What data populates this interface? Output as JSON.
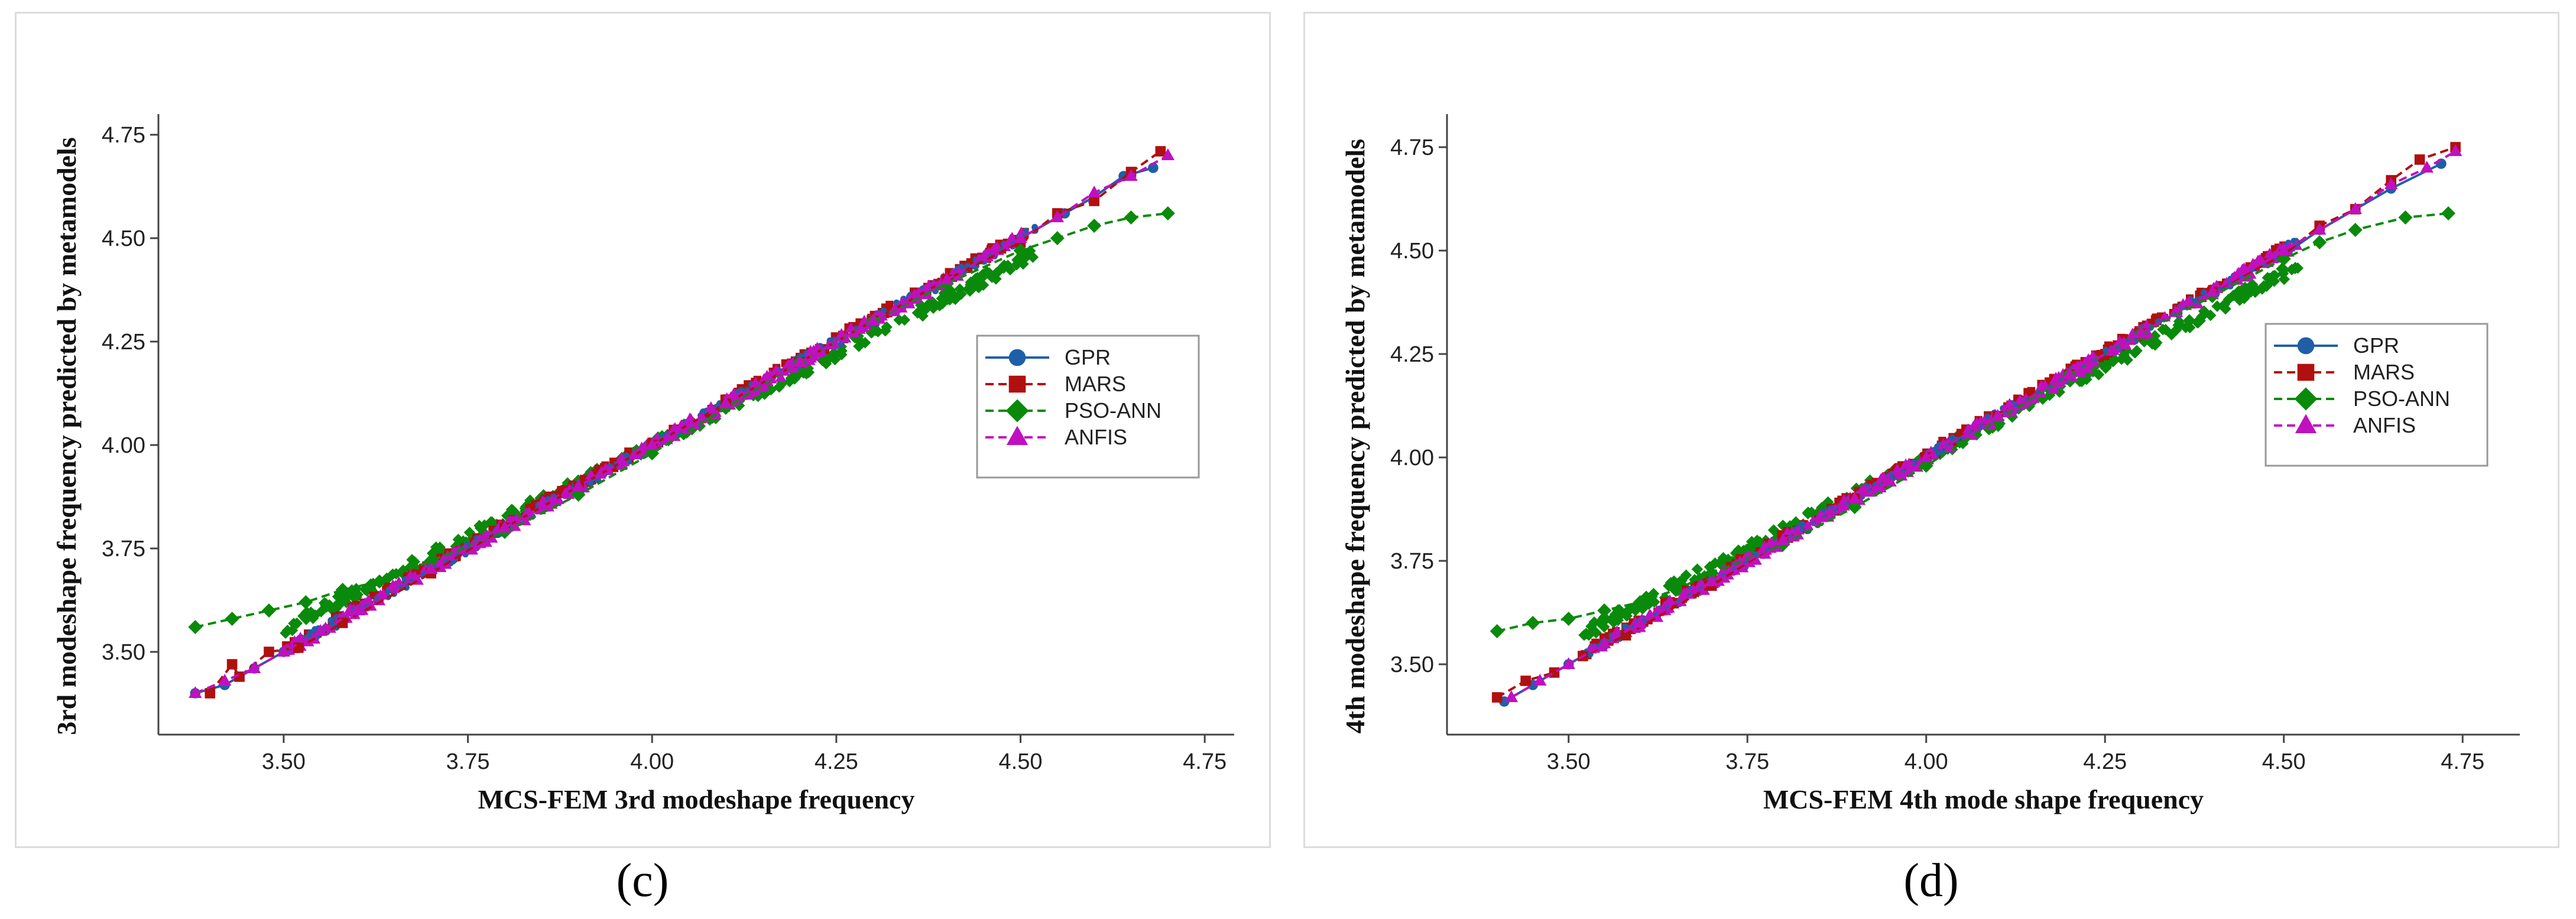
{
  "chart_data": [
    {
      "type": "line",
      "panel": "(c)",
      "xlabel": "MCS-FEM 3rd modeshape frequency",
      "ylabel": "3rd modeshape frequency predicted by metamodels",
      "xlim": [
        3.33,
        4.79
      ],
      "ylim": [
        3.3,
        4.8
      ],
      "xticks": [
        "3.50",
        "3.75",
        "4.00",
        "4.25",
        "4.50",
        "4.75"
      ],
      "yticks": [
        "3.50",
        "3.75",
        "4.00",
        "4.25",
        "4.50",
        "4.75"
      ],
      "legend_position": "right",
      "series": [
        {
          "name": "GPR",
          "color": "#1f5fa8",
          "marker": "circle",
          "dash": "solid",
          "x": [
            3.38,
            3.42,
            3.46,
            3.5,
            3.55,
            3.6,
            3.7,
            3.8,
            3.9,
            4.0,
            4.1,
            4.2,
            4.3,
            4.4,
            4.5,
            4.56,
            4.6,
            4.64,
            4.68
          ],
          "y": [
            3.4,
            3.42,
            3.46,
            3.5,
            3.55,
            3.6,
            3.7,
            3.8,
            3.9,
            4.0,
            4.1,
            4.2,
            4.3,
            4.4,
            4.5,
            4.56,
            4.6,
            4.65,
            4.67
          ]
        },
        {
          "name": "MARS",
          "color": "#b01010",
          "marker": "square",
          "dash": "dashed",
          "x": [
            3.4,
            3.43,
            3.44,
            3.48,
            3.52,
            3.58,
            3.7,
            3.8,
            3.9,
            4.0,
            4.1,
            4.2,
            4.3,
            4.4,
            4.5,
            4.55,
            4.6,
            4.65,
            4.69
          ],
          "y": [
            3.4,
            3.47,
            3.44,
            3.5,
            3.51,
            3.57,
            3.69,
            3.8,
            3.9,
            4.0,
            4.1,
            4.2,
            4.3,
            4.4,
            4.49,
            4.56,
            4.59,
            4.66,
            4.71
          ]
        },
        {
          "name": "PSO-ANN",
          "color": "#0a8a0a",
          "marker": "diamond",
          "dash": "dashed",
          "x": [
            3.38,
            3.43,
            3.48,
            3.53,
            3.58,
            3.63,
            3.7,
            3.8,
            3.9,
            4.0,
            4.1,
            4.2,
            4.3,
            4.4,
            4.5,
            4.55,
            4.6,
            4.65,
            4.7
          ],
          "y": [
            3.56,
            3.58,
            3.6,
            3.62,
            3.65,
            3.67,
            3.72,
            3.79,
            3.88,
            3.98,
            4.09,
            4.2,
            4.3,
            4.39,
            4.47,
            4.5,
            4.53,
            4.55,
            4.56
          ]
        },
        {
          "name": "ANFIS",
          "color": "#c010c0",
          "marker": "triangle",
          "dash": "dashed",
          "x": [
            3.38,
            3.42,
            3.46,
            3.5,
            3.55,
            3.6,
            3.7,
            3.8,
            3.9,
            4.0,
            4.1,
            4.2,
            4.3,
            4.4,
            4.5,
            4.55,
            4.6,
            4.65,
            4.7
          ],
          "y": [
            3.4,
            3.43,
            3.46,
            3.5,
            3.55,
            3.6,
            3.7,
            3.8,
            3.9,
            4.0,
            4.1,
            4.2,
            4.3,
            4.4,
            4.5,
            4.55,
            4.61,
            4.65,
            4.7
          ]
        }
      ]
    },
    {
      "type": "line",
      "panel": "(d)",
      "xlabel": "MCS-FEM 4th mode shape frequency",
      "ylabel": "4th modeshape frequency predicted by metamodels",
      "xlim": [
        3.33,
        4.83
      ],
      "ylim": [
        3.33,
        4.83
      ],
      "xticks": [
        "3.50",
        "3.75",
        "4.00",
        "4.25",
        "4.50",
        "4.75"
      ],
      "yticks": [
        "3.50",
        "3.75",
        "4.00",
        "4.25",
        "4.50",
        "4.75"
      ],
      "legend_position": "right",
      "series": [
        {
          "name": "GPR",
          "color": "#1f5fa8",
          "marker": "circle",
          "dash": "solid",
          "x": [
            3.41,
            3.45,
            3.5,
            3.55,
            3.6,
            3.7,
            3.8,
            3.9,
            4.0,
            4.1,
            4.2,
            4.3,
            4.4,
            4.5,
            4.55,
            4.6,
            4.65,
            4.72
          ],
          "y": [
            3.41,
            3.45,
            3.5,
            3.55,
            3.6,
            3.7,
            3.8,
            3.9,
            4.0,
            4.1,
            4.2,
            4.3,
            4.4,
            4.49,
            4.55,
            4.6,
            4.65,
            4.71
          ]
        },
        {
          "name": "MARS",
          "color": "#b01010",
          "marker": "square",
          "dash": "dashed",
          "x": [
            3.4,
            3.44,
            3.48,
            3.52,
            3.58,
            3.7,
            3.8,
            3.9,
            4.0,
            4.1,
            4.2,
            4.3,
            4.4,
            4.5,
            4.55,
            4.6,
            4.65,
            4.69,
            4.74
          ],
          "y": [
            3.42,
            3.46,
            3.48,
            3.52,
            3.57,
            3.69,
            3.8,
            3.9,
            4.0,
            4.1,
            4.2,
            4.3,
            4.4,
            4.49,
            4.56,
            4.6,
            4.67,
            4.72,
            4.75
          ]
        },
        {
          "name": "PSO-ANN",
          "color": "#0a8a0a",
          "marker": "diamond",
          "dash": "dashed",
          "x": [
            3.4,
            3.45,
            3.5,
            3.55,
            3.6,
            3.65,
            3.7,
            3.8,
            3.9,
            4.0,
            4.1,
            4.2,
            4.3,
            4.4,
            4.5,
            4.55,
            4.6,
            4.67,
            4.73
          ],
          "y": [
            3.58,
            3.6,
            3.61,
            3.63,
            3.65,
            3.68,
            3.72,
            3.79,
            3.88,
            3.98,
            4.09,
            4.2,
            4.3,
            4.39,
            4.48,
            4.52,
            4.55,
            4.58,
            4.59
          ]
        },
        {
          "name": "ANFIS",
          "color": "#c010c0",
          "marker": "triangle",
          "dash": "dashed",
          "x": [
            3.42,
            3.46,
            3.5,
            3.55,
            3.6,
            3.7,
            3.8,
            3.9,
            4.0,
            4.1,
            4.2,
            4.3,
            4.4,
            4.5,
            4.55,
            4.6,
            4.65,
            4.7,
            4.74
          ],
          "y": [
            3.42,
            3.46,
            3.5,
            3.55,
            3.6,
            3.7,
            3.8,
            3.9,
            4.0,
            4.1,
            4.2,
            4.3,
            4.4,
            4.5,
            4.55,
            4.6,
            4.66,
            4.7,
            4.74
          ]
        }
      ]
    }
  ]
}
